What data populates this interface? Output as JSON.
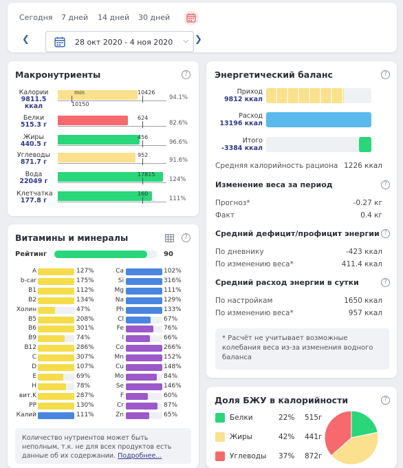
{
  "period": {
    "tabs": [
      "Сегодня",
      "7 дней",
      "14 дней",
      "30 дней"
    ],
    "date_range": "28 окт 2020 - 4 ноя 2020",
    "prev_icon": "chevron-left-icon",
    "next_icon": "chevron-right-icon"
  },
  "macro": {
    "title": "Макронутриенты",
    "min_label": "min",
    "items": [
      {
        "name": "Калории",
        "value": "9811.5",
        "unit": "ккал",
        "target": "10426",
        "extra": "10150",
        "pct": "94.1%",
        "fraction": 0.941,
        "color": "#fbe08d"
      },
      {
        "name": "Белки",
        "value": "515.3 г",
        "target": "624",
        "pct": "82.6%",
        "fraction": 0.826,
        "color": "#f7696c"
      },
      {
        "name": "Жиры",
        "value": "440.5 г",
        "target": "456",
        "pct": "96.6%",
        "fraction": 0.966,
        "color": "#29d67a"
      },
      {
        "name": "Углеводы",
        "value": "871.7 г",
        "target": "952",
        "pct": "91.6%",
        "fraction": 0.916,
        "color": "#fbe08d"
      },
      {
        "name": "Вода",
        "value": "22049 г",
        "target": "17815",
        "pct": "124%",
        "fraction": 1.24,
        "color": "#29d67a"
      },
      {
        "name": "Клетчатка",
        "value": "177.8 г",
        "target": "160",
        "pct": "111%",
        "fraction": 1.11,
        "color": "#29d67a"
      }
    ]
  },
  "vitamins": {
    "title": "Витамины и минералы",
    "rating_label": "Рейтинг",
    "rating_value": "90",
    "rating_fraction": 0.9,
    "left": [
      {
        "n": "A",
        "p": "127%",
        "f": 1.0,
        "c": "#f5dc4b"
      },
      {
        "n": "b-car",
        "p": "175%",
        "f": 1.0,
        "c": "#f5dc4b"
      },
      {
        "n": "B1",
        "p": "112%",
        "f": 1.0,
        "c": "#f5dc4b"
      },
      {
        "n": "B2",
        "p": "134%",
        "f": 1.0,
        "c": "#f5dc4b"
      },
      {
        "n": "Холин",
        "p": "47%",
        "f": 0.47,
        "c": "#f5dc4b"
      },
      {
        "n": "B5",
        "p": "208%",
        "f": 1.0,
        "c": "#f5dc4b"
      },
      {
        "n": "B6",
        "p": "301%",
        "f": 1.0,
        "c": "#f5dc4b"
      },
      {
        "n": "B9",
        "p": "74%",
        "f": 0.74,
        "c": "#f5dc4b"
      },
      {
        "n": "B12",
        "p": "286%",
        "f": 1.0,
        "c": "#f5dc4b"
      },
      {
        "n": "C",
        "p": "307%",
        "f": 1.0,
        "c": "#f5dc4b"
      },
      {
        "n": "D",
        "p": "107%",
        "f": 1.0,
        "c": "#f5dc4b"
      },
      {
        "n": "E",
        "p": "69%",
        "f": 0.69,
        "c": "#f5dc4b"
      },
      {
        "n": "H",
        "p": "78%",
        "f": 0.78,
        "c": "#f5dc4b"
      },
      {
        "n": "вит.K",
        "p": "287%",
        "f": 1.0,
        "c": "#f5dc4b"
      },
      {
        "n": "PP",
        "p": "130%",
        "f": 1.0,
        "c": "#f5dc4b"
      },
      {
        "n": "Калий",
        "p": "111%",
        "f": 1.0,
        "c": "#4a86e0"
      }
    ],
    "right": [
      {
        "n": "Ca",
        "p": "102%",
        "f": 1.0,
        "c": "#4a86e0"
      },
      {
        "n": "Si",
        "p": "316%",
        "f": 1.0,
        "c": "#4a86e0"
      },
      {
        "n": "Mg",
        "p": "111%",
        "f": 1.0,
        "c": "#4a86e0"
      },
      {
        "n": "Na",
        "p": "129%",
        "f": 1.0,
        "c": "#4a86e0"
      },
      {
        "n": "Ph",
        "p": "133%",
        "f": 1.0,
        "c": "#4a86e0"
      },
      {
        "n": "Cl",
        "p": "67%",
        "f": 0.67,
        "c": "#4a86e0"
      },
      {
        "n": "Fe",
        "p": "76%",
        "f": 0.76,
        "c": "#9b59c9"
      },
      {
        "n": "I",
        "p": "66%",
        "f": 0.66,
        "c": "#9b59c9"
      },
      {
        "n": "Co",
        "p": "266%",
        "f": 1.0,
        "c": "#9b59c9"
      },
      {
        "n": "Mn",
        "p": "152%",
        "f": 1.0,
        "c": "#9b59c9"
      },
      {
        "n": "Cu",
        "p": "148%",
        "f": 1.0,
        "c": "#9b59c9"
      },
      {
        "n": "Mo",
        "p": "84%",
        "f": 0.84,
        "c": "#9b59c9"
      },
      {
        "n": "Se",
        "p": "146%",
        "f": 1.0,
        "c": "#9b59c9"
      },
      {
        "n": "F",
        "p": "60%",
        "f": 0.6,
        "c": "#9b59c9"
      },
      {
        "n": "Cr",
        "p": "87%",
        "f": 0.87,
        "c": "#9b59c9"
      },
      {
        "n": "Zn",
        "p": "65%",
        "f": 0.65,
        "c": "#9b59c9"
      }
    ],
    "note_text": "Количество нутриентов может быть неполным, т.к. не для всех продуктов есть данные об их содержании.",
    "note_link": "Подробнее..."
  },
  "energy": {
    "title": "Энергетический баланс",
    "income_label": "Приход",
    "income_value": "9812 ккал",
    "income_fraction": 0.74,
    "expense_label": "Расход",
    "expense_value": "13196 ккал",
    "expense_fraction": 1.0,
    "total_label": "Итого",
    "total_value": "-3384 ккал",
    "total_fraction": 0.26,
    "avg_cal_label": "Средняя калорийность рациона",
    "avg_cal_value": "1226 ккал",
    "weight_title": "Изменение веса за период",
    "forecast_label": "Прогноз*",
    "forecast_value": "-0.27 кг",
    "fact_label": "Факт",
    "fact_value": "0.4 кг",
    "deficit_title": "Средний дефицит/профицит энергии",
    "by_diary_label": "По дневнику",
    "by_diary_value": "-423 ккал",
    "by_weight_label": "По изменению веса*",
    "by_weight_value": "411.4 ккал",
    "expense_title": "Средний расход энергии в сутки",
    "by_settings_label": "По настройкам",
    "by_settings_value": "1650 ккал",
    "by_weight2_label": "По изменению веса*",
    "by_weight2_value": "957 ккал",
    "note": "* Расчёт не учитывает возможные колебания веса из-за изменения водного баланса"
  },
  "bju": {
    "title": "Доля БЖУ в калорийности",
    "items": [
      {
        "name": "Белки",
        "pct": "22%",
        "grams": "515г",
        "fraction": 0.22,
        "color": "#29d67a"
      },
      {
        "name": "Жиры",
        "pct": "42%",
        "grams": "441г",
        "fraction": 0.42,
        "color": "#fbe08d"
      },
      {
        "name": "Углеводы",
        "pct": "37%",
        "grams": "872г",
        "fraction": 0.37,
        "color": "#f7696c"
      }
    ]
  }
}
